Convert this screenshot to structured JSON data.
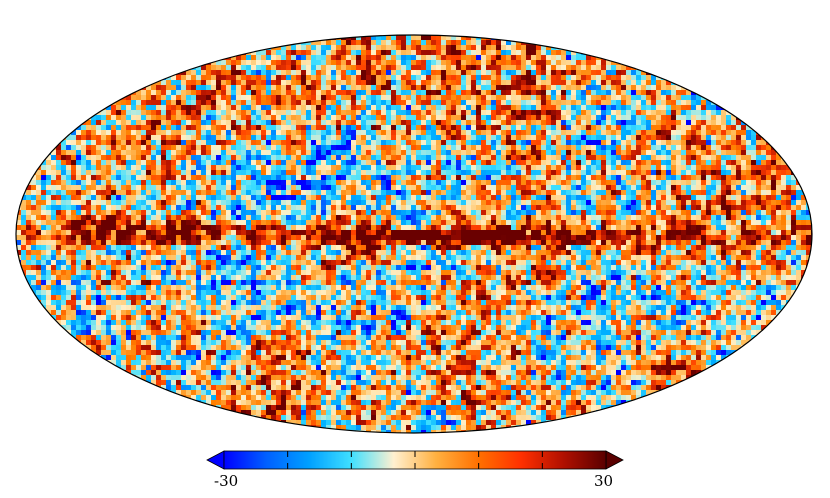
{
  "map": {
    "projection": "mollweide",
    "scheme": [
      "#0000ff",
      "#0080ff",
      "#00b0ff",
      "#40e0ff",
      "#fff0c8",
      "#ffc060",
      "#ff8000",
      "#ff4000",
      "#b01000",
      "#6a0000"
    ]
  },
  "colorbar": {
    "min_label": "-30",
    "max_label": "30",
    "colors": [
      "#0000ff",
      "#0060ff",
      "#00a0ff",
      "#40e0ff",
      "#fff0d0",
      "#ffb040",
      "#ff7000",
      "#ff3000",
      "#b01000",
      "#5a0000"
    ]
  }
}
